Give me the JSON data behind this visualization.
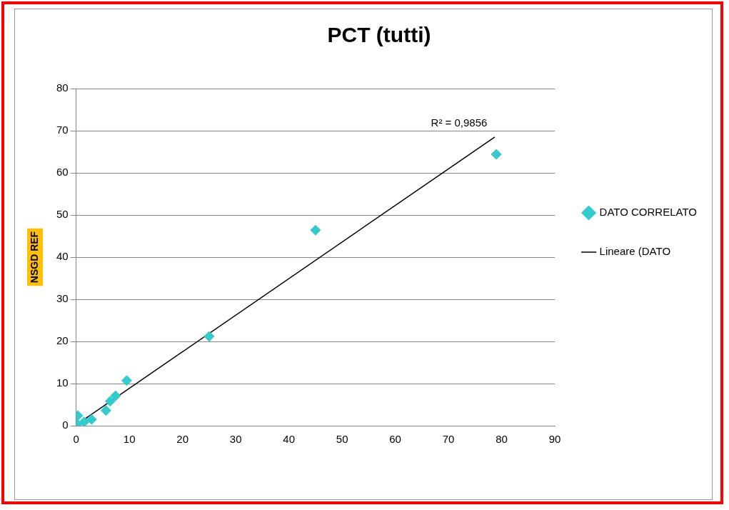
{
  "chart_data": {
    "type": "scatter",
    "title": "PCT (tutti)",
    "ylabel": "NSGD REF",
    "xlim": [
      0,
      90
    ],
    "xticks": [
      0,
      10,
      20,
      30,
      40,
      50,
      60,
      70,
      80,
      90
    ],
    "ylim": [
      0,
      80
    ],
    "yticks": [
      0,
      10,
      20,
      30,
      40,
      50,
      60,
      70,
      80
    ],
    "grid": "y",
    "legend": "right",
    "marker": "diamond",
    "annotations": [
      "R² = 0,9856"
    ],
    "series": [
      {
        "name": "DATO CORRELATO",
        "color": "#33cccc",
        "x": [
          79,
          45,
          25,
          9.5,
          7.4,
          6.4,
          5.6,
          2.9,
          0.3,
          0.2,
          1.5
        ],
        "values": [
          64.4,
          46.4,
          21.2,
          10.7,
          7.1,
          5.8,
          3.6,
          1.5,
          2.4,
          0.4,
          0.9
        ]
      },
      {
        "name": "Lineare (DATO",
        "color": "#000000",
        "type": "line",
        "marker": "none",
        "x": [
          0,
          78.7
        ],
        "values": [
          0.2,
          68.5
        ]
      }
    ]
  }
}
